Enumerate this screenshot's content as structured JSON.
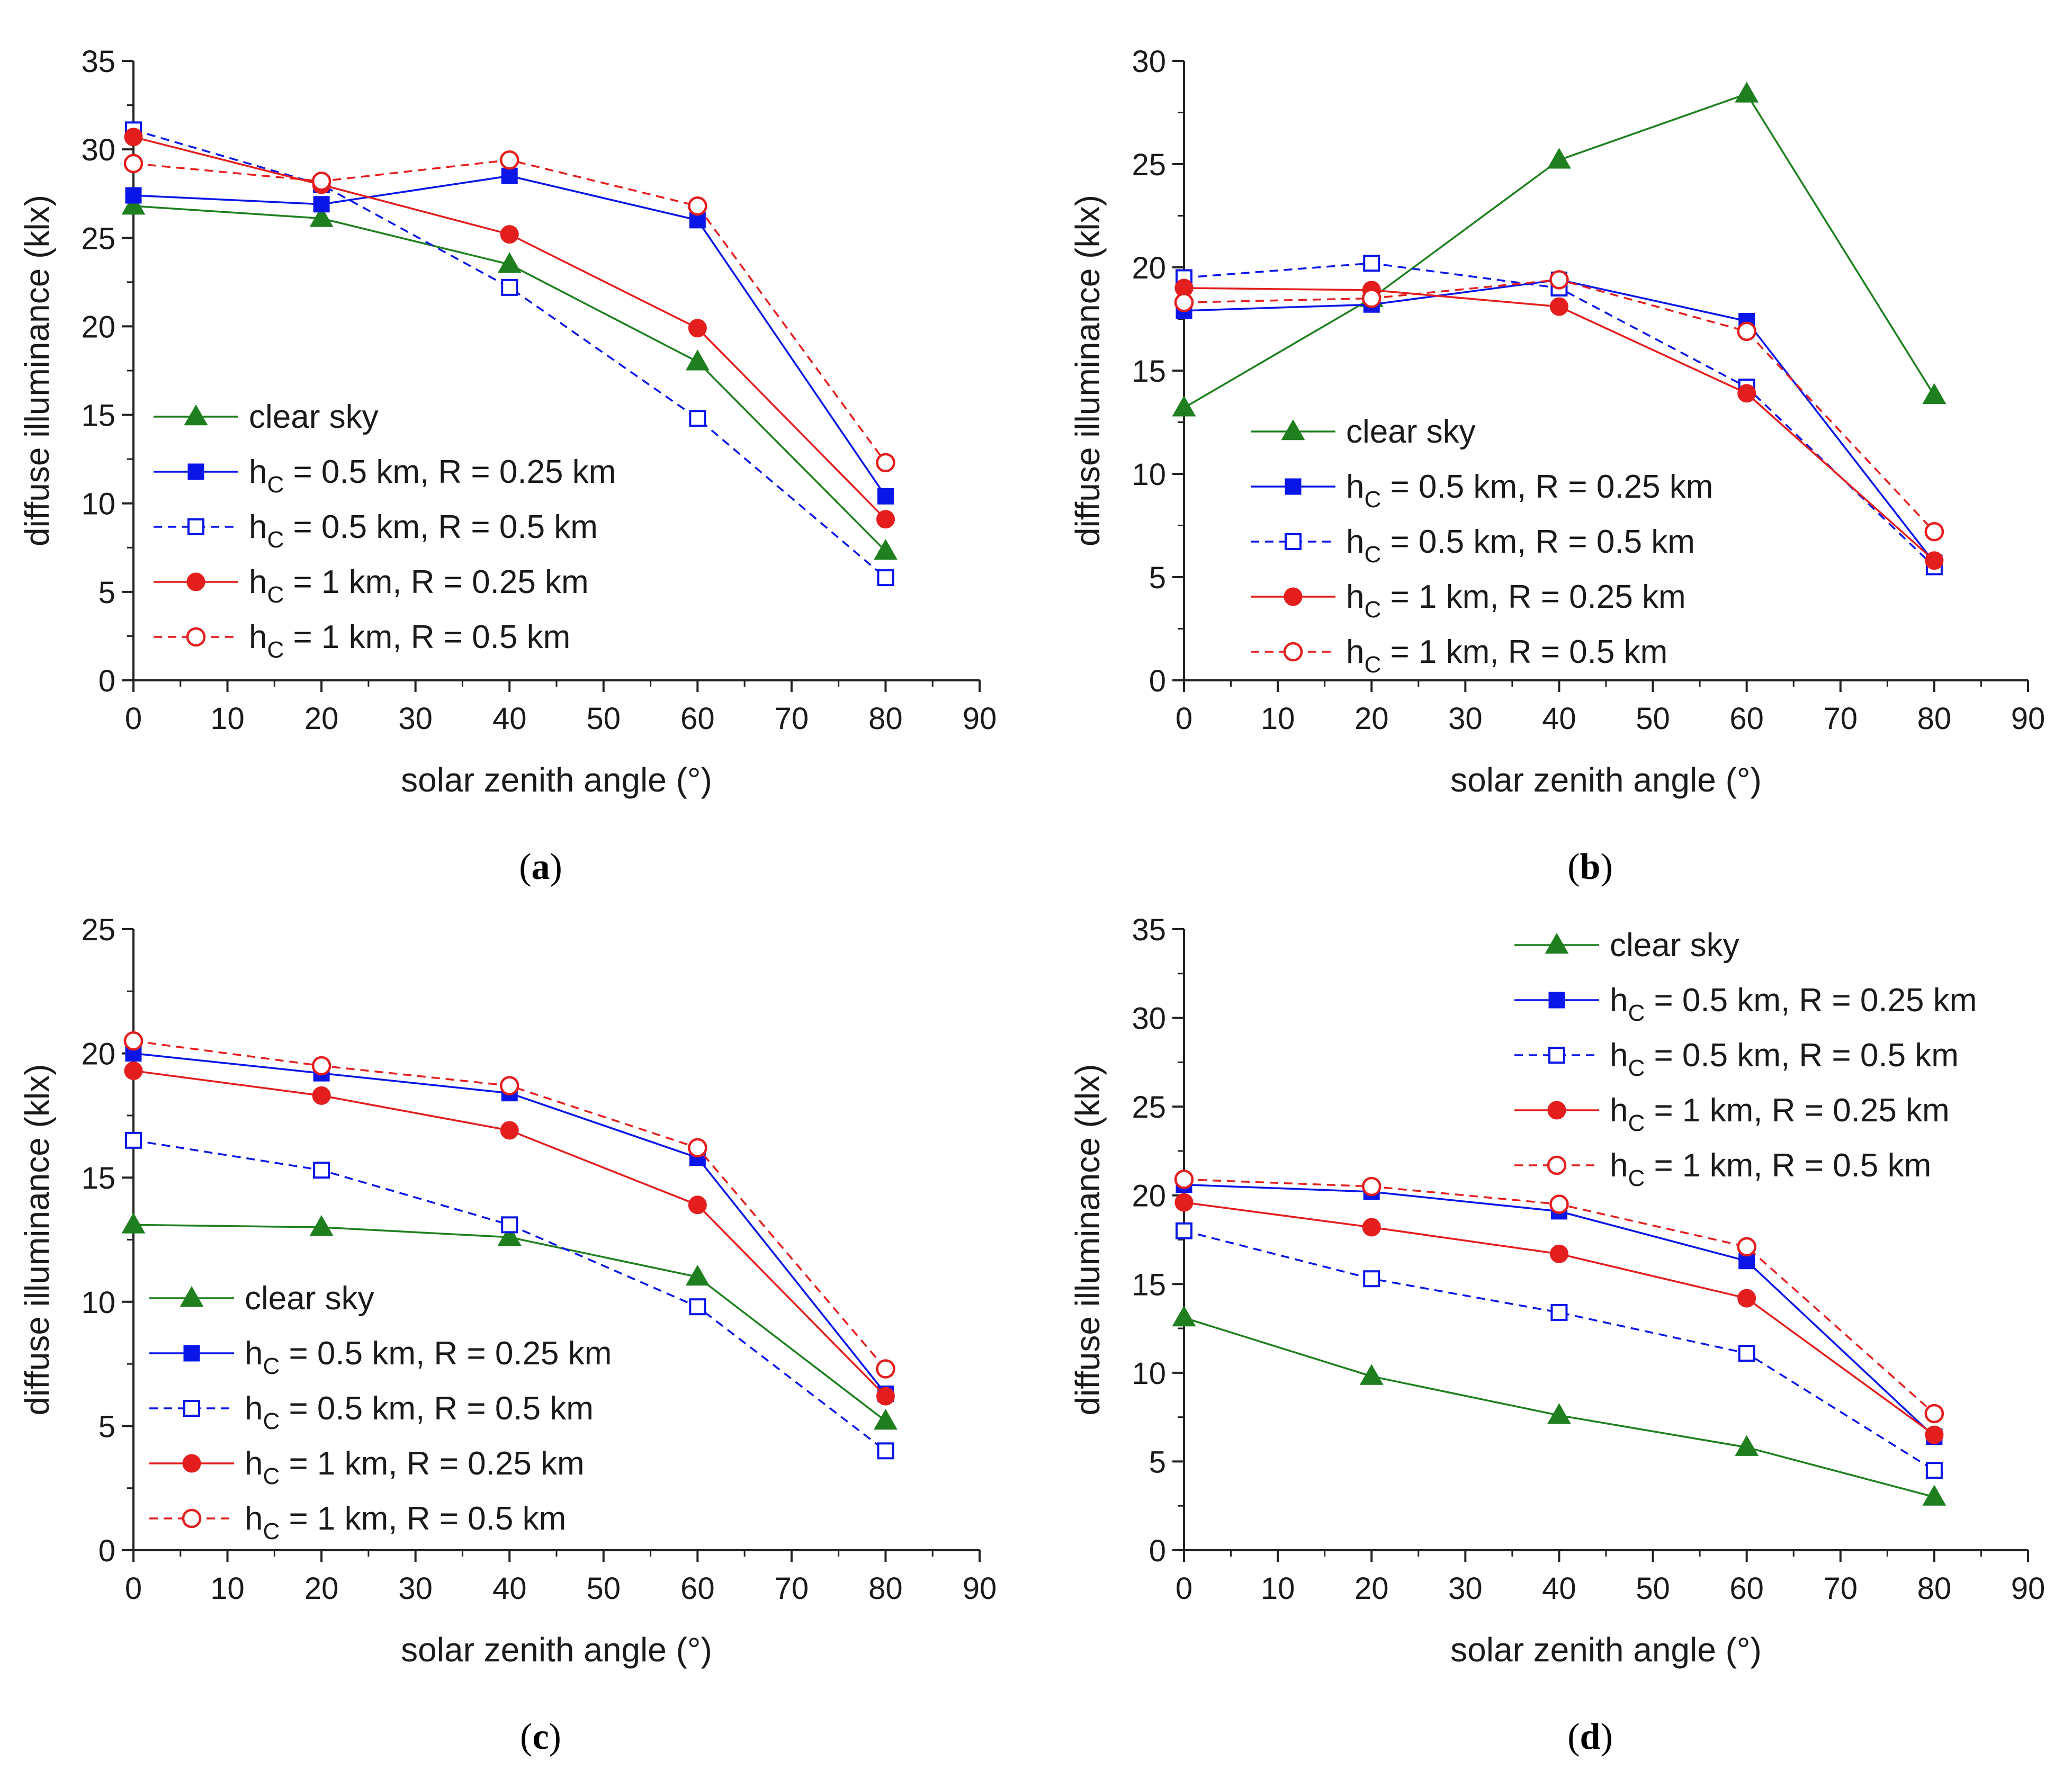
{
  "figure": {
    "colors": {
      "clear": "#1f7f1f",
      "blue": "#0a16e8",
      "red": "#e41d1d",
      "axis": "#222222"
    },
    "legend_labels": [
      {
        "text": "clear sky"
      },
      {
        "prefix": "h",
        "sub": "C",
        "text": " = 0.5 km, R = 0.25 km"
      },
      {
        "prefix": "h",
        "sub": "C",
        "text": " = 0.5 km, R = 0.5 km"
      },
      {
        "prefix": "h",
        "sub": "C",
        "text": " = 1 km, R = 0.25 km"
      },
      {
        "prefix": "h",
        "sub": "C",
        "text": " = 1 km, R = 0.5 km"
      }
    ]
  },
  "chart_data": [
    {
      "type": "line",
      "panel": "a",
      "caption": "a",
      "xlabel": "solar zenith angle (°)",
      "ylabel": "diffuse illuminance (klx)",
      "xlim": [
        0,
        90
      ],
      "ylim": [
        0,
        35
      ],
      "xticks": [
        0,
        10,
        20,
        30,
        40,
        50,
        60,
        70,
        80,
        90
      ],
      "yticks": [
        0,
        5,
        10,
        15,
        20,
        25,
        30,
        35
      ],
      "legend_position": "bottom-left",
      "x": [
        0,
        20,
        40,
        60,
        80
      ],
      "series": [
        {
          "name": "clear sky",
          "values": [
            26.8,
            26.1,
            23.5,
            18.0,
            7.3
          ]
        },
        {
          "name": "hC = 0.5 km, R = 0.25 km",
          "values": [
            27.4,
            26.9,
            28.5,
            26.0,
            10.4
          ]
        },
        {
          "name": "hC = 0.5 km, R = 0.5 km",
          "values": [
            31.1,
            28.0,
            22.2,
            14.8,
            5.8
          ]
        },
        {
          "name": "hC = 1 km, R = 0.25 km",
          "values": [
            30.7,
            28.0,
            25.2,
            19.9,
            9.1
          ]
        },
        {
          "name": "hC = 1 km, R = 0.5 km",
          "values": [
            29.2,
            28.2,
            29.4,
            26.8,
            12.3
          ]
        }
      ]
    },
    {
      "type": "line",
      "panel": "b",
      "caption": "b",
      "xlabel": "solar zenith angle (°)",
      "ylabel": "diffuse illuminance (klx)",
      "xlim": [
        0,
        90
      ],
      "ylim": [
        0,
        30
      ],
      "xticks": [
        0,
        10,
        20,
        30,
        40,
        50,
        60,
        70,
        80,
        90
      ],
      "yticks": [
        0,
        5,
        10,
        15,
        20,
        25,
        30
      ],
      "legend_position": "bottom-left",
      "x": [
        0,
        20,
        40,
        60,
        80
      ],
      "series": [
        {
          "name": "clear sky",
          "values": [
            13.2,
            18.5,
            25.2,
            28.4,
            13.8
          ]
        },
        {
          "name": "hC = 0.5 km, R = 0.25 km",
          "values": [
            17.9,
            18.2,
            19.4,
            17.4,
            5.7
          ]
        },
        {
          "name": "hC = 0.5 km, R = 0.5 km",
          "values": [
            19.5,
            20.2,
            19.0,
            14.2,
            5.5
          ]
        },
        {
          "name": "hC = 1 km, R = 0.25 km",
          "values": [
            19.0,
            18.9,
            18.1,
            13.9,
            5.8
          ]
        },
        {
          "name": "hC = 1 km, R = 0.5 km",
          "values": [
            18.3,
            18.5,
            19.4,
            16.9,
            7.2
          ]
        }
      ]
    },
    {
      "type": "line",
      "panel": "c",
      "caption": "c",
      "xlabel": "solar zenith angle (°)",
      "ylabel": "diffuse illuminance (klx)",
      "xlim": [
        0,
        90
      ],
      "ylim": [
        0,
        25
      ],
      "xticks": [
        0,
        10,
        20,
        30,
        40,
        50,
        60,
        70,
        80,
        90
      ],
      "yticks": [
        0,
        5,
        10,
        15,
        20,
        25
      ],
      "legend_position": "bottom-left",
      "x": [
        0,
        20,
        40,
        60,
        80
      ],
      "series": [
        {
          "name": "clear sky",
          "values": [
            13.1,
            13.0,
            12.6,
            11.0,
            5.2
          ]
        },
        {
          "name": "hC = 0.5 km, R = 0.25 km",
          "values": [
            20.0,
            19.2,
            18.4,
            15.8,
            6.3
          ]
        },
        {
          "name": "hC = 0.5 km, R = 0.5 km",
          "values": [
            16.5,
            15.3,
            13.1,
            9.8,
            4.0
          ]
        },
        {
          "name": "hC = 1 km, R = 0.25 km",
          "values": [
            19.3,
            18.3,
            16.9,
            13.9,
            6.2
          ]
        },
        {
          "name": "hC = 1 km, R = 0.5 km",
          "values": [
            20.5,
            19.5,
            18.7,
            16.2,
            7.3
          ]
        }
      ]
    },
    {
      "type": "line",
      "panel": "d",
      "caption": "d",
      "xlabel": "solar zenith angle (°)",
      "ylabel": "diffuse illuminance (klx)",
      "xlim": [
        0,
        90
      ],
      "ylim": [
        0,
        35
      ],
      "xticks": [
        0,
        10,
        20,
        30,
        40,
        50,
        60,
        70,
        80,
        90
      ],
      "yticks": [
        0,
        5,
        10,
        15,
        20,
        25,
        30,
        35
      ],
      "legend_position": "top-right",
      "x": [
        0,
        20,
        40,
        60,
        80
      ],
      "series": [
        {
          "name": "clear sky",
          "values": [
            13.1,
            9.8,
            7.6,
            5.8,
            3.0
          ]
        },
        {
          "name": "hC = 0.5 km, R = 0.25 km",
          "values": [
            20.6,
            20.2,
            19.1,
            16.3,
            6.4
          ]
        },
        {
          "name": "hC = 0.5 km, R = 0.5 km",
          "values": [
            18.0,
            15.3,
            13.4,
            11.1,
            4.5
          ]
        },
        {
          "name": "hC = 1 km, R = 0.25 km",
          "values": [
            19.6,
            18.2,
            16.7,
            14.2,
            6.5
          ]
        },
        {
          "name": "hC = 1 km, R = 0.5 km",
          "values": [
            20.9,
            20.5,
            19.5,
            17.1,
            7.7
          ]
        }
      ]
    }
  ]
}
